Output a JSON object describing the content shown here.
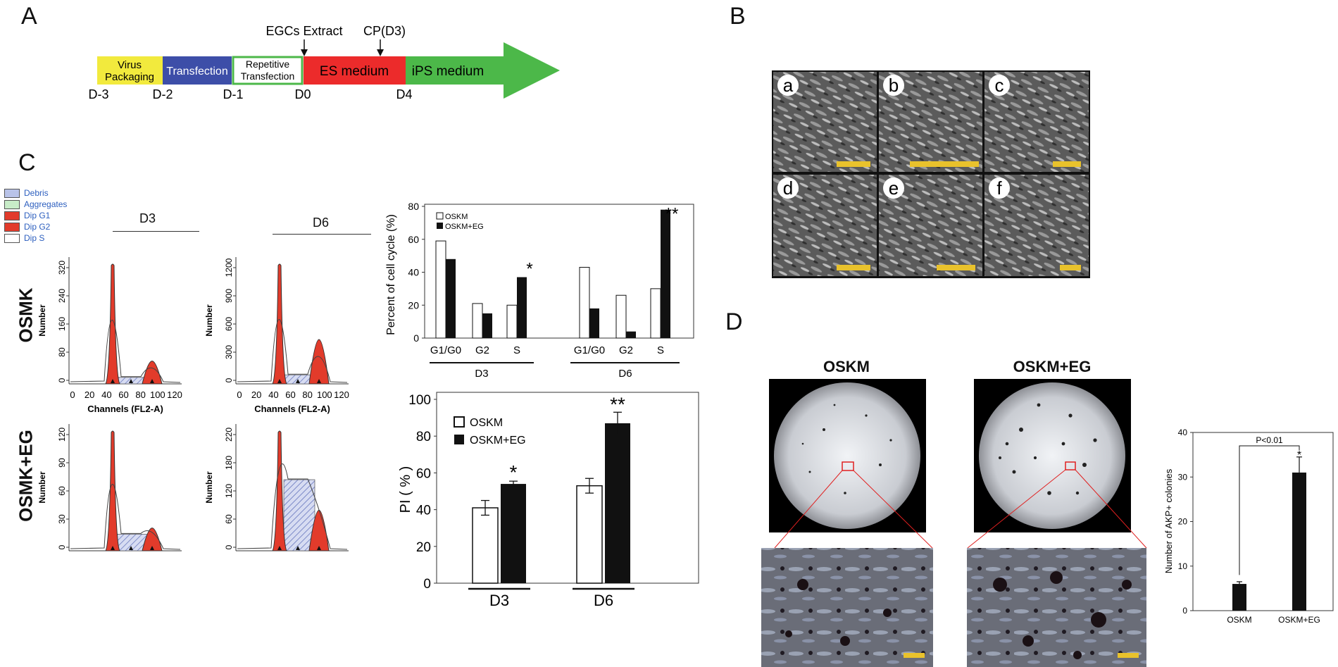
{
  "panels": {
    "a": "A",
    "b": "B",
    "c": "C",
    "d": "D"
  },
  "timeline": {
    "segments": [
      {
        "label": "Virus\nPackaging",
        "color": "#f2ea3d"
      },
      {
        "label": "Transfection",
        "color": "#3d4ea8"
      },
      {
        "label": "Repetitive\nTransfection",
        "color": "#ffffff"
      },
      {
        "label": "ES medium",
        "color": "#ec2b2b"
      },
      {
        "label": "iPS medium",
        "color": "#4cb849"
      }
    ],
    "days": [
      "D-3",
      "D-2",
      "D-1",
      "D0",
      "D4"
    ],
    "annotations": [
      "EGCs Extract",
      "CP(D3)"
    ]
  },
  "micrographs": {
    "labels": [
      "a",
      "b",
      "c",
      "d",
      "e",
      "f"
    ]
  },
  "flow": {
    "legend": [
      {
        "label": "Debris",
        "color": "#b9c3e8"
      },
      {
        "label": "Aggregates",
        "color": "#c8ecc8"
      },
      {
        "label": "Dip G1",
        "color": "#e23b2b"
      },
      {
        "label": "Dip G2",
        "color": "#e23b2b"
      },
      {
        "label": "Dip S",
        "color": "#ffffff"
      }
    ],
    "col_labels": [
      "D3",
      "D6"
    ],
    "row_labels": [
      "OSMK",
      "OSMK+EG"
    ],
    "ylabel": "Number",
    "xlabel": "Channels (FL2-A)",
    "x_ticks": [
      "0",
      "20",
      "40",
      "60",
      "80",
      "100",
      "120"
    ],
    "y_ticks": [
      [
        "0",
        "80",
        "160",
        "240",
        "320"
      ],
      [
        "0",
        "300",
        "600",
        "900",
        "1200"
      ],
      [
        "0",
        "30",
        "60",
        "90",
        "120"
      ],
      [
        "0",
        "60",
        "120",
        "180",
        "220"
      ]
    ]
  },
  "chart_data": [
    {
      "type": "bar",
      "ylabel": "Percent of cell cycle (%)",
      "ylim": [
        0,
        80
      ],
      "y_ticks": [
        0,
        20,
        40,
        60,
        80
      ],
      "groups": [
        "D3",
        "D6"
      ],
      "categories": [
        "G1/G0",
        "G2",
        "S",
        "G1/G0",
        "G2",
        "S"
      ],
      "series": [
        {
          "name": "OSKM",
          "values": [
            59,
            21,
            20,
            43,
            26,
            30
          ]
        },
        {
          "name": "OSKM+EG",
          "values": [
            48,
            15,
            37,
            18,
            4,
            78
          ]
        }
      ],
      "annotations": [
        "*",
        "**"
      ]
    },
    {
      "type": "bar",
      "ylabel": "PI ( % )",
      "ylim": [
        0,
        100
      ],
      "y_ticks": [
        0,
        20,
        40,
        60,
        80,
        100
      ],
      "categories": [
        "D3",
        "D6"
      ],
      "series": [
        {
          "name": "OSKM",
          "values": [
            41,
            53
          ],
          "errors": [
            4,
            4
          ]
        },
        {
          "name": "OSKM+EG",
          "values": [
            54,
            87
          ],
          "errors": [
            1.5,
            6
          ]
        }
      ],
      "annotations": [
        "*",
        "**"
      ]
    },
    {
      "type": "bar",
      "ylabel": "Number of AKP+ colonies",
      "ylim": [
        0,
        40
      ],
      "y_ticks": [
        0,
        10,
        20,
        30,
        40
      ],
      "categories": [
        "OSKM",
        "OSKM+EG"
      ],
      "values": [
        6,
        31
      ],
      "errors": [
        0.5,
        3.5
      ],
      "annotations": [
        "P<0.01",
        "*"
      ]
    }
  ],
  "akp": {
    "titles": [
      "OSKM",
      "OSKM+EG"
    ]
  }
}
